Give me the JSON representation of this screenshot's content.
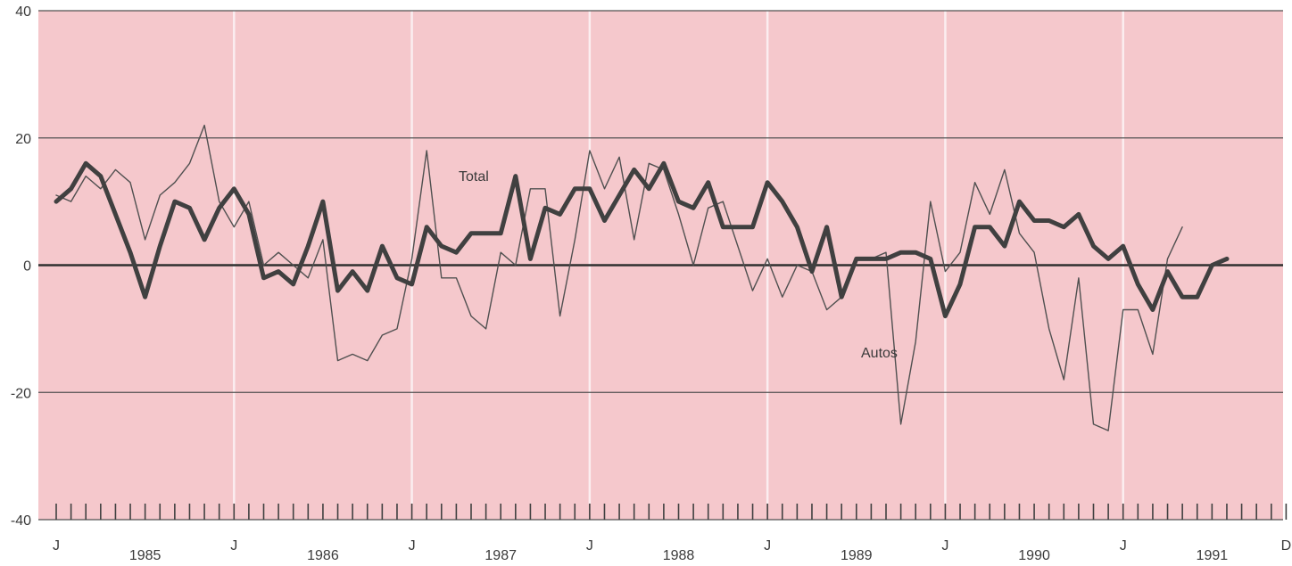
{
  "chart_data": {
    "type": "line",
    "title": "",
    "xlabel": "",
    "ylabel": "",
    "ylim": [
      -40,
      40
    ],
    "yticks": [
      40,
      20,
      0,
      -20,
      -40
    ],
    "xlim": [
      "1985-01",
      "1991-12"
    ],
    "x_ticks": [
      {
        "label": "J",
        "at": "1985-01"
      },
      {
        "label": "1985",
        "at": "1985-07"
      },
      {
        "label": "J",
        "at": "1986-01"
      },
      {
        "label": "1986",
        "at": "1986-07"
      },
      {
        "label": "J",
        "at": "1987-01"
      },
      {
        "label": "1987",
        "at": "1987-07"
      },
      {
        "label": "J",
        "at": "1988-01"
      },
      {
        "label": "1988",
        "at": "1988-07"
      },
      {
        "label": "J",
        "at": "1989-01"
      },
      {
        "label": "1989",
        "at": "1989-07"
      },
      {
        "label": "J",
        "at": "1990-01"
      },
      {
        "label": "1990",
        "at": "1990-07"
      },
      {
        "label": "J",
        "at": "1991-01"
      },
      {
        "label": "1991",
        "at": "1991-07"
      },
      {
        "label": "D",
        "at": "1991-12"
      }
    ],
    "grid": true,
    "background_color": "#f5c8cc",
    "series": [
      {
        "name": "Total",
        "style": "thick",
        "color": "#404040",
        "start": "1985-01",
        "values": [
          10,
          12,
          16,
          14,
          8,
          2,
          -5,
          3,
          10,
          9,
          4,
          9,
          12,
          8,
          -2,
          -1,
          -3,
          3,
          10,
          -4,
          -1,
          -4,
          3,
          -2,
          -3,
          6,
          3,
          2,
          5,
          5,
          5,
          14,
          1,
          9,
          8,
          12,
          12,
          7,
          11,
          15,
          12,
          16,
          10,
          9,
          13,
          6,
          6,
          6,
          13,
          10,
          6,
          -1,
          6,
          -5,
          1,
          1,
          1,
          2,
          2,
          1,
          -8,
          -3,
          6,
          6,
          3,
          10,
          7,
          7,
          6,
          8,
          3,
          1,
          3,
          -3,
          -7,
          -1,
          -5,
          -5,
          0,
          1
        ]
      },
      {
        "name": "Autos",
        "style": "thin",
        "color": "#505050",
        "start": "1985-01",
        "values": [
          11,
          10,
          14,
          12,
          15,
          13,
          4,
          11,
          13,
          16,
          22,
          10,
          6,
          10,
          0,
          2,
          0,
          -2,
          4,
          -15,
          -14,
          -15,
          -11,
          -10,
          1,
          18,
          -2,
          -2,
          -8,
          -10,
          2,
          0,
          12,
          12,
          -8,
          4,
          18,
          12,
          17,
          4,
          16,
          15,
          8,
          0,
          9,
          10,
          3,
          -4,
          1,
          -5,
          0,
          -1,
          -7,
          -5,
          1,
          1,
          2,
          -25,
          -12,
          10,
          -1,
          2,
          13,
          8,
          15,
          5,
          2,
          -10,
          -18,
          -2,
          -25,
          -26,
          -7,
          -7,
          -14,
          1,
          6
        ]
      }
    ],
    "annotations": [
      {
        "text": "Total",
        "series": "Total"
      },
      {
        "text": "Autos",
        "series": "Autos"
      }
    ]
  }
}
